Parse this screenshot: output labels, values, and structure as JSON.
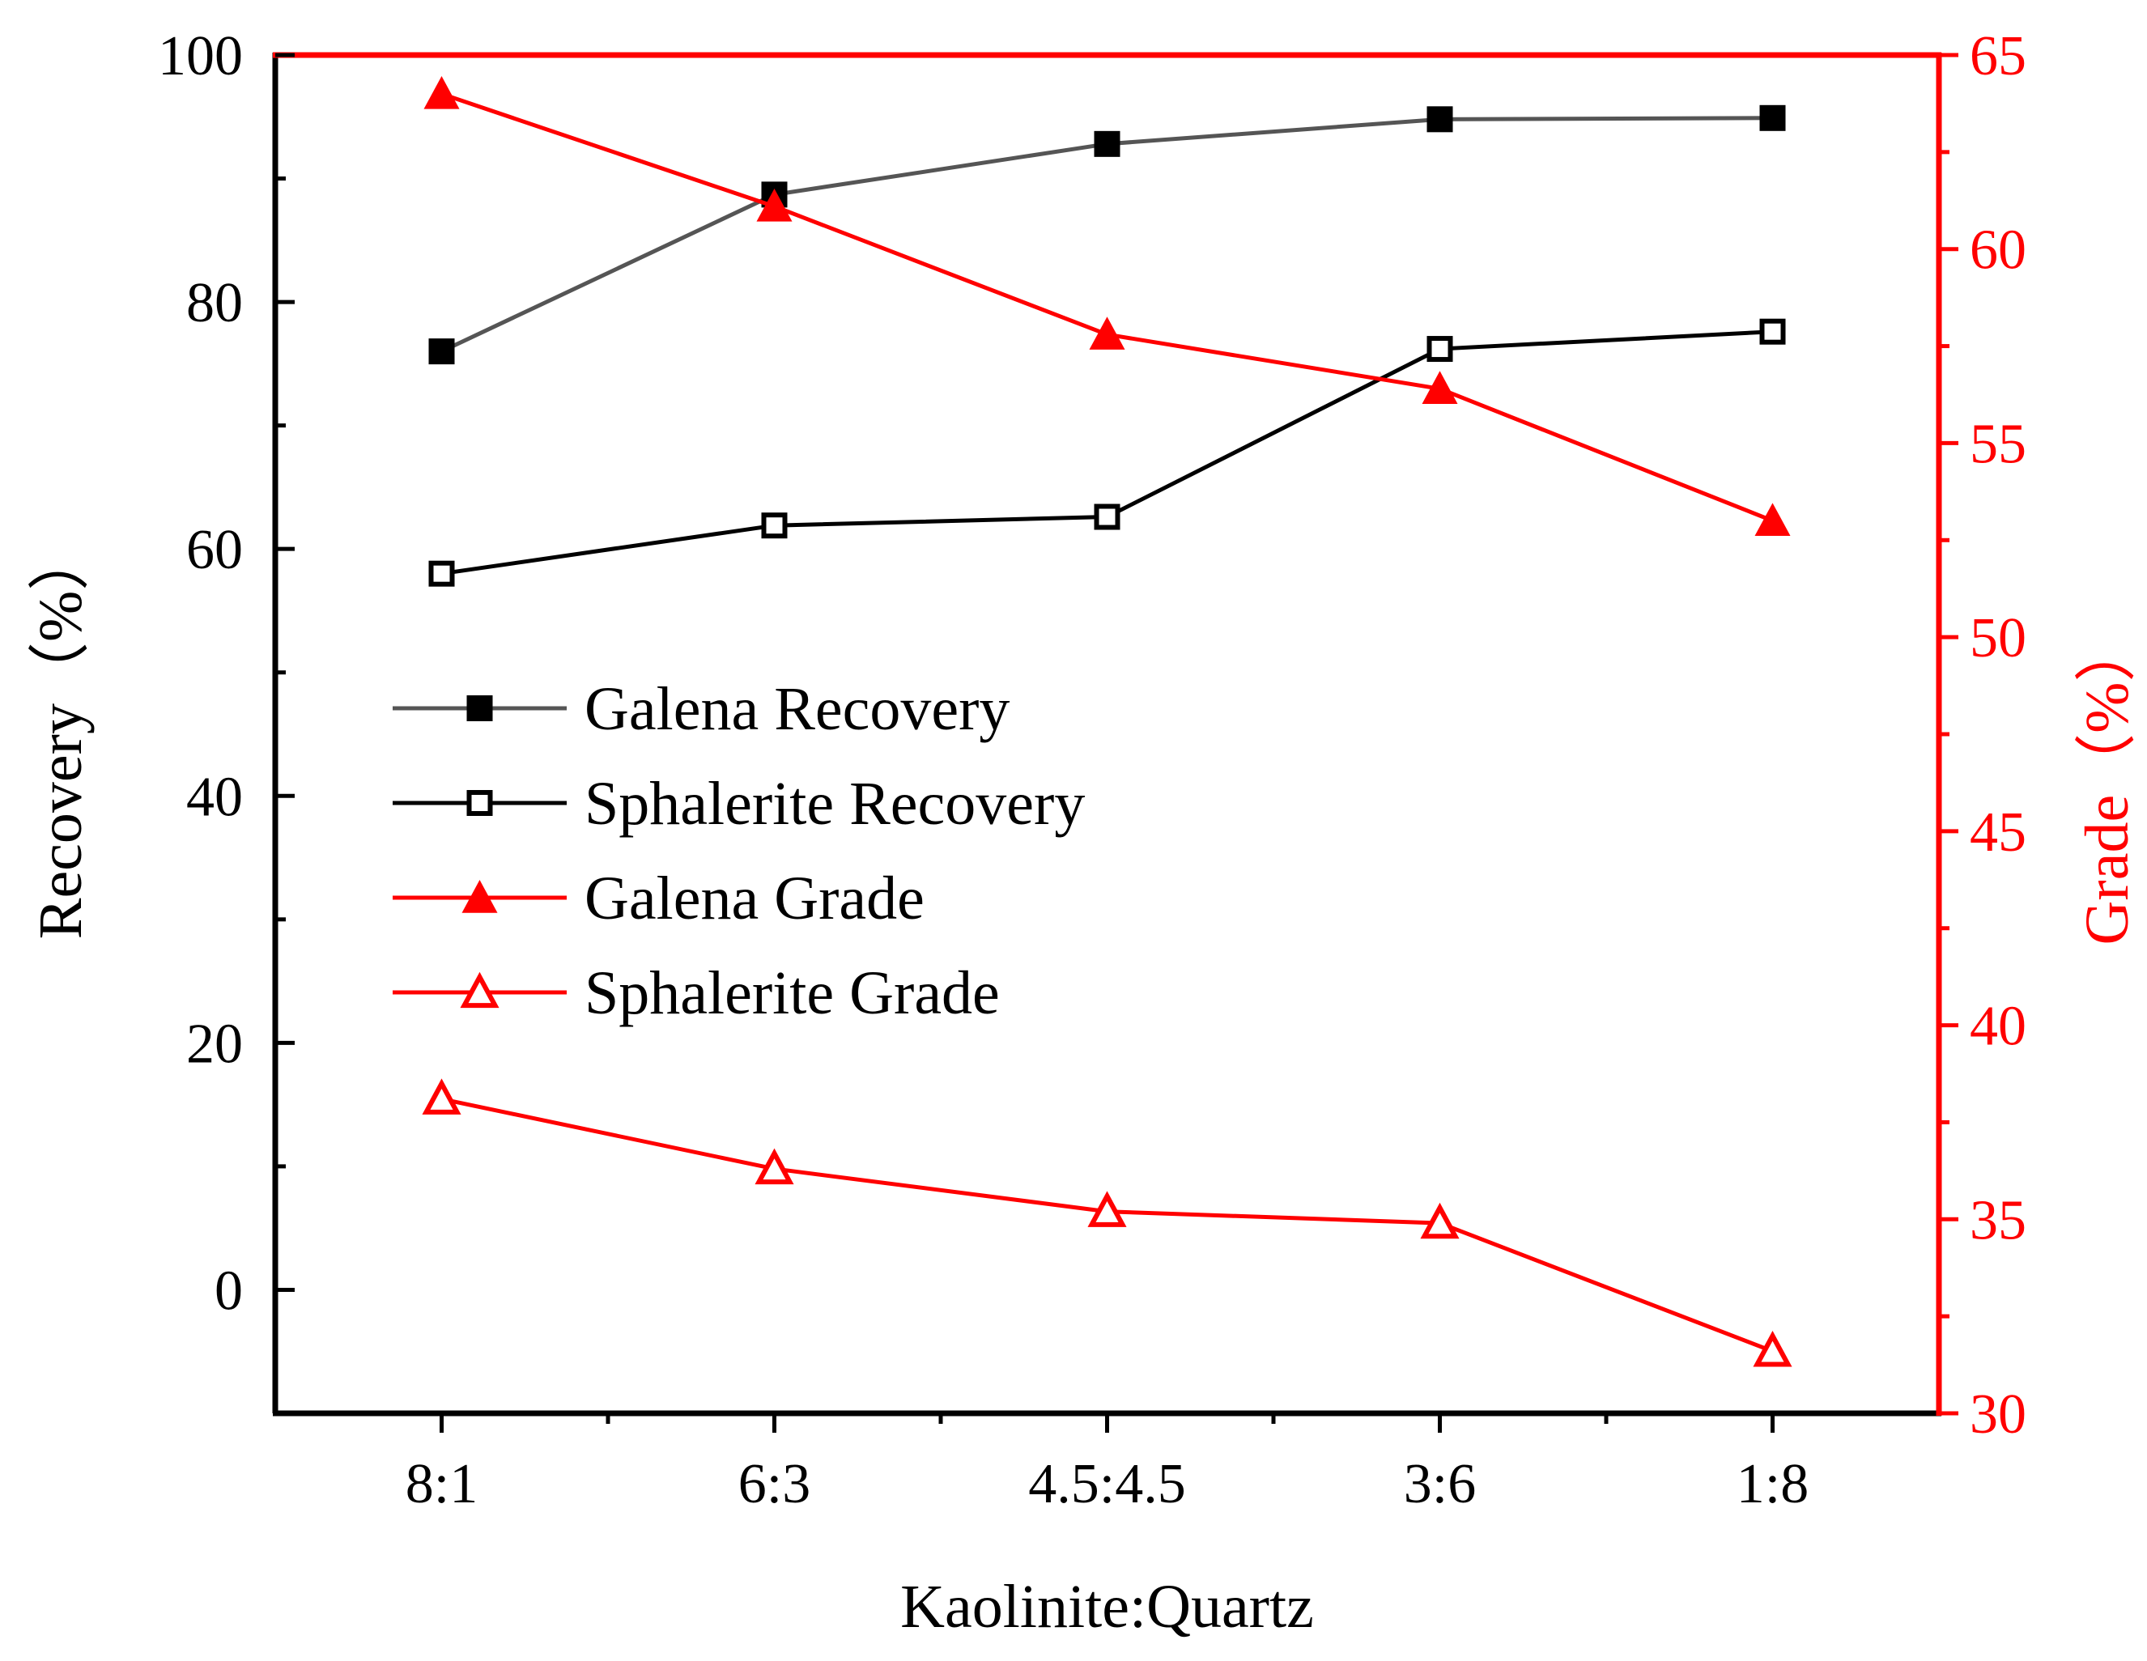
{
  "chart_data": {
    "type": "line",
    "xlabel": "Kaolinite:Quartz",
    "ylabel_left": "Recovery（%）",
    "ylabel_right": "Grade（%）",
    "categories": [
      "8:1",
      "6:3",
      "4.5:4.5",
      "3:6",
      "1:8"
    ],
    "ylim_left": [
      -10,
      100
    ],
    "yticks_left": [
      0,
      20,
      40,
      60,
      80,
      100
    ],
    "ylim_right": [
      30,
      65
    ],
    "yticks_right": [
      30,
      35,
      40,
      45,
      50,
      55,
      60,
      65
    ],
    "legend_position": "center-left",
    "series": [
      {
        "name": "Galena Recovery",
        "axis": "left",
        "marker": "filled-square",
        "color": "#555555",
        "marker_color": "#000000",
        "values": [
          76.0,
          88.7,
          92.8,
          94.8,
          94.9
        ]
      },
      {
        "name": "Sphalerite Recovery",
        "axis": "left",
        "marker": "open-square",
        "color": "#000000",
        "marker_color": "#000000",
        "values": [
          58.0,
          61.9,
          62.6,
          76.2,
          77.6
        ]
      },
      {
        "name": "Galena Grade",
        "axis": "right",
        "marker": "filled-triangle",
        "color": "#ff0000",
        "marker_color": "#ff0000",
        "values": [
          64.0,
          61.1,
          57.8,
          56.4,
          53.0
        ]
      },
      {
        "name": "Sphalerite Grade",
        "axis": "right",
        "marker": "open-triangle",
        "color": "#ff0000",
        "marker_color": "#ff0000",
        "values": [
          38.1,
          36.3,
          35.2,
          34.9,
          31.6
        ]
      }
    ]
  }
}
